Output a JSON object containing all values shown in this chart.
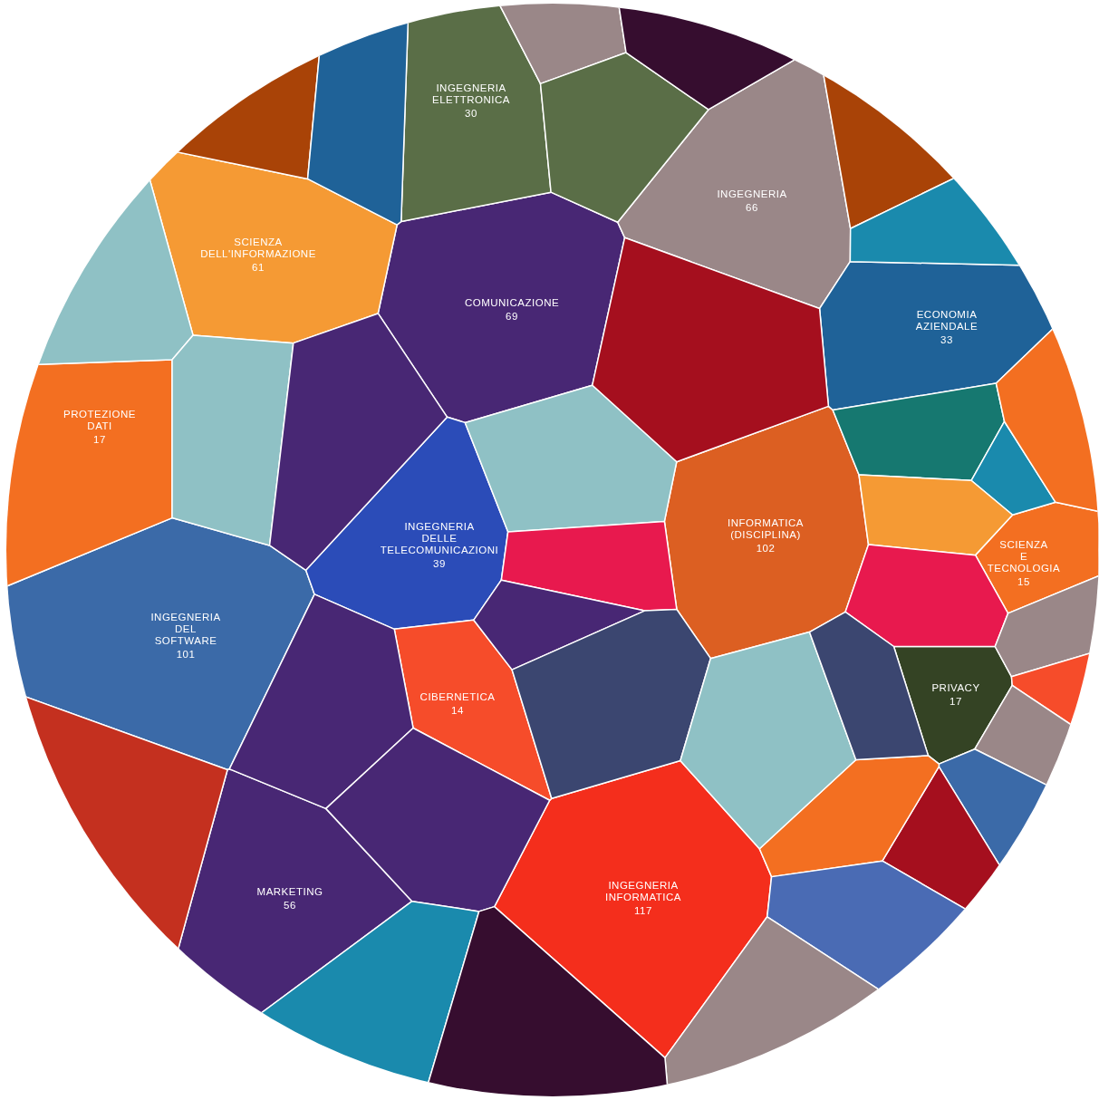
{
  "chart_data": {
    "type": "other",
    "data_labels": true,
    "categories": [
      "INGEGNERIA INFORMATICA",
      "INFORMATICA (DISCIPLINA)",
      "INGEGNERIA DEL SOFTWARE",
      "COMUNICAZIONE",
      "INGEGNERIA",
      "SCIENZA DELL'INFORMAZIONE",
      "MARKETING",
      "INGEGNERIA DELLE TELECOMUNICAZIONI",
      "ECONOMIA AZIENDALE",
      "INGEGNERIA ELETTRONICA",
      "PROTEZIONE DATI",
      "PRIVACY",
      "SCIENZA E TECNOLOGIA",
      "CIBERNETICA",
      null,
      null,
      null,
      null,
      null,
      null,
      null,
      null,
      null,
      null,
      null,
      null,
      null,
      null,
      null,
      null,
      null,
      null,
      null,
      null,
      null,
      null,
      null,
      null,
      null,
      null,
      null,
      null,
      null,
      null,
      null,
      null,
      null,
      null,
      null
    ],
    "values": [
      117,
      102,
      101,
      69,
      66,
      61,
      56,
      39,
      33,
      30,
      17,
      17,
      15,
      14,
      null,
      null,
      null,
      null,
      null,
      null,
      null,
      null,
      null,
      null,
      null,
      null,
      null,
      null,
      null,
      null,
      null,
      null,
      null,
      null,
      null,
      null,
      null,
      null,
      null,
      null,
      null,
      null,
      null,
      null,
      null,
      null,
      null,
      null,
      null
    ],
    "colors": [
      "#f42e1c",
      "#dc5f22",
      "#3b6aa8",
      "#482774",
      "#9a8788",
      "#f59a34",
      "#482774",
      "#2b4cb8",
      "#1f6298",
      "#5a6e47",
      "#f36f21",
      "#344324",
      "#f36f21",
      "#f64c2a",
      "#8fc1c5",
      "#a94307",
      "#1f6298",
      "#9a8788",
      "#5a6e47",
      "#360d2f",
      "#a94307",
      "#1a8aad",
      "#a50f1e",
      "#8fc1c5",
      "#8fc1c5",
      "#482774",
      "#167870",
      "#1a8aad",
      "#f59a34",
      "#f36f21",
      "#e8194e",
      "#482774",
      "#3b4670",
      "#e8194e",
      "#9a8788",
      "#f64c2a",
      "#9a8788",
      "#3b6aa8",
      "#a50f1e",
      "#f36f21",
      "#8fc1c5",
      "#3b4670",
      "#4a6bb4",
      "#9a8788",
      "#482774",
      "#482774",
      "#c4301f",
      "#1a8aad",
      "#360d2f"
    ]
  }
}
